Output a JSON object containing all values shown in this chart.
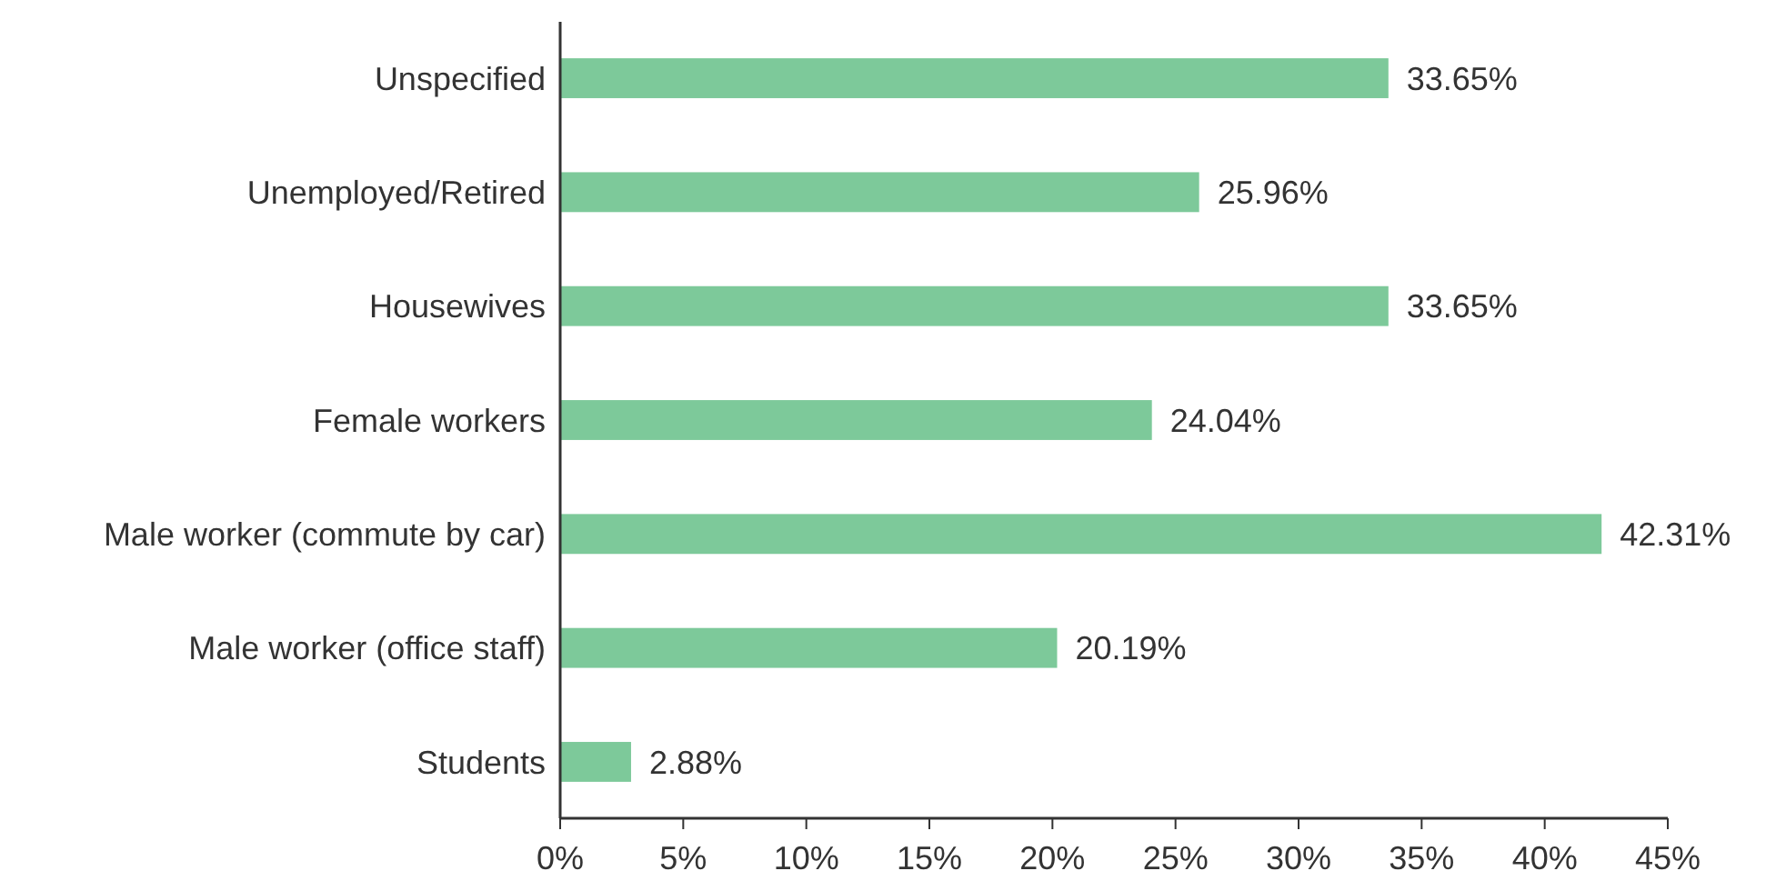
{
  "chart_data": {
    "type": "bar",
    "orientation": "horizontal",
    "categories": [
      "Unspecified",
      "Unemployed/Retired",
      "Housewives",
      "Female workers",
      "Male worker (commute by car)",
      "Male worker (office staff)",
      "Students"
    ],
    "values": [
      33.65,
      25.96,
      33.65,
      24.04,
      42.31,
      20.19,
      2.88
    ],
    "value_labels": [
      "33.65%",
      "25.96%",
      "33.65%",
      "24.04%",
      "42.31%",
      "20.19%",
      "2.88%"
    ],
    "color": "#7dc99a",
    "xlim": [
      0,
      45
    ],
    "xticks": [
      {
        "value": 0,
        "label": "0%"
      },
      {
        "value": 5,
        "label": "5%"
      },
      {
        "value": 10,
        "label": "10%"
      },
      {
        "value": 15,
        "label": "15%"
      },
      {
        "value": 20,
        "label": "20%"
      },
      {
        "value": 25,
        "label": "25%"
      },
      {
        "value": 30,
        "label": "30%"
      },
      {
        "value": 35,
        "label": "35%"
      },
      {
        "value": 40,
        "label": "40%"
      },
      {
        "value": 45,
        "label": "45%"
      }
    ],
    "grid": false
  }
}
